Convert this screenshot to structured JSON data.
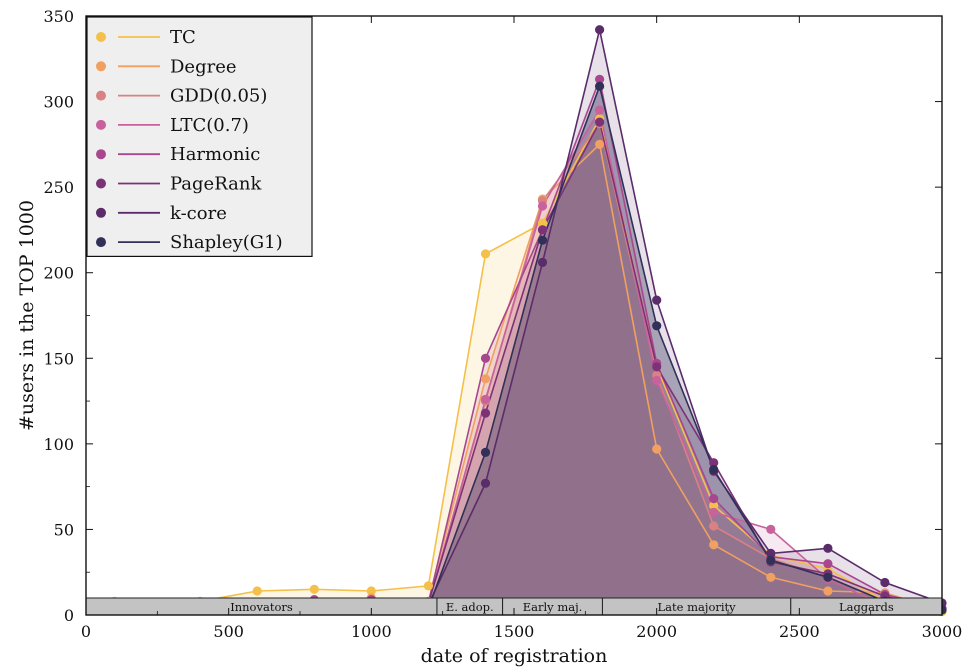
{
  "chart_data": {
    "type": "area",
    "xlabel": "date of registration",
    "ylabel": "#users in the TOP 1000",
    "xlim": [
      0,
      3000
    ],
    "ylim": [
      0,
      350
    ],
    "xticks": [
      0,
      500,
      1000,
      1500,
      2000,
      2500,
      3000
    ],
    "yticks": [
      0,
      50,
      100,
      150,
      200,
      250,
      300,
      350
    ],
    "legend_position": "top-left",
    "x": [
      100,
      200,
      400,
      600,
      800,
      1000,
      1200,
      1400,
      1600,
      1800,
      2000,
      2200,
      2400,
      2600,
      2800,
      3000
    ],
    "series": [
      {
        "name": "TC",
        "color": "#f4c04a",
        "values": [
          8,
          5,
          8,
          14,
          15,
          14,
          17,
          211,
          229,
          290,
          145,
          64,
          35,
          27,
          8,
          2
        ]
      },
      {
        "name": "Degree",
        "color": "#f0a060",
        "values": [
          6,
          4,
          4,
          7,
          8,
          10,
          8,
          138,
          243,
          275,
          97,
          41,
          22,
          14,
          13,
          3
        ]
      },
      {
        "name": "GDD(0.05)",
        "color": "#da8182",
        "values": [
          5,
          3,
          4,
          5,
          7,
          8,
          6,
          125,
          242,
          287,
          140,
          52,
          33,
          22,
          8,
          4
        ]
      },
      {
        "name": "LTC(0.7)",
        "color": "#c8629c",
        "values": [
          5,
          3,
          4,
          6,
          7,
          8,
          6,
          126,
          239,
          295,
          137,
          60,
          50,
          21,
          5,
          3
        ]
      },
      {
        "name": "Harmonic",
        "color": "#a8478e",
        "values": [
          6,
          4,
          3,
          7,
          9,
          9,
          7,
          150,
          225,
          313,
          147,
          68,
          34,
          30,
          12,
          4
        ]
      },
      {
        "name": "PageRank",
        "color": "#7c3277",
        "values": [
          7,
          4,
          4,
          6,
          7,
          7,
          7,
          118,
          225,
          288,
          145,
          89,
          31,
          24,
          11,
          3
        ]
      },
      {
        "name": "k-core",
        "color": "#5a2c6a",
        "values": [
          5,
          4,
          4,
          5,
          6,
          6,
          6,
          77,
          206,
          342,
          184,
          84,
          36,
          39,
          19,
          7
        ]
      },
      {
        "name": "Shapley(G1)",
        "color": "#303058",
        "values": [
          4,
          3,
          3,
          3,
          4,
          4,
          4,
          95,
          219,
          309,
          169,
          85,
          32,
          22,
          8,
          3
        ]
      }
    ],
    "adoption_bands": [
      {
        "label": "Innovators",
        "from": 0,
        "to": 1230
      },
      {
        "label": "E. adop.",
        "from": 1230,
        "to": 1460
      },
      {
        "label": "Early maj.",
        "from": 1460,
        "to": 1810
      },
      {
        "label": "Late majority",
        "from": 1810,
        "to": 2470
      },
      {
        "label": "Laggards",
        "from": 2470,
        "to": 3000
      }
    ]
  }
}
